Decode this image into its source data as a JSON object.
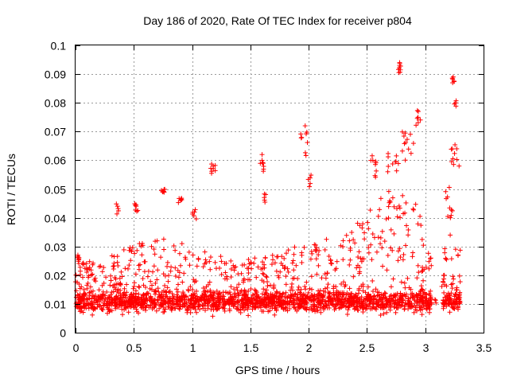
{
  "chart_data": {
    "type": "scatter",
    "title": "Day 186 of 2020, Rate Of TEC Index for receiver p804",
    "xlabel": "GPS time / hours",
    "ylabel": "ROTI / TECUs",
    "xlim": [
      0,
      3.5
    ],
    "ylim": [
      0,
      0.1
    ],
    "grid": true,
    "marker": "+",
    "color": "#ff0000",
    "x_ticks": [
      "0",
      "0.5",
      "1",
      "1.5",
      "2",
      "2.5",
      "3",
      "3.5"
    ],
    "y_ticks": [
      "0",
      "0.01",
      "0.02",
      "0.03",
      "0.04",
      "0.05",
      "0.06",
      "0.07",
      "0.08",
      "0.09",
      "0.1"
    ],
    "series": [
      {
        "name": "ROTI",
        "notable_points": [
          [
            0.02,
            0.027
          ],
          [
            0.36,
            0.044
          ],
          [
            0.52,
            0.044
          ],
          [
            0.75,
            0.049
          ],
          [
            0.9,
            0.046
          ],
          [
            1.02,
            0.042
          ],
          [
            1.18,
            0.058
          ],
          [
            1.6,
            0.062
          ],
          [
            1.97,
            0.072
          ],
          [
            2.55,
            0.06
          ],
          [
            2.78,
            0.094
          ],
          [
            2.94,
            0.077
          ],
          [
            3.24,
            0.089
          ],
          [
            3.26,
            0.08
          ],
          [
            3.27,
            0.064
          ],
          [
            3.29,
            0.058
          ]
        ]
      }
    ]
  }
}
